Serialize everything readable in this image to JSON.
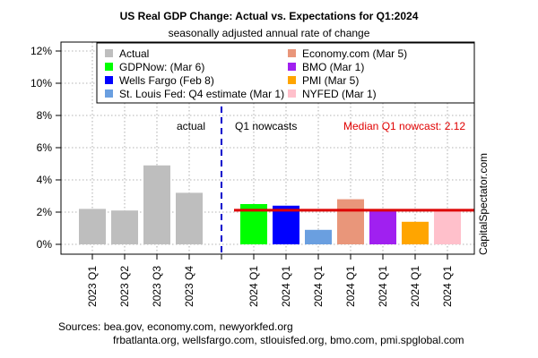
{
  "chart_data": {
    "type": "bar",
    "title": "US Real GDP Change: Actual vs. Expectations for Q1:2024",
    "subtitle": "seasonally adjusted annual rate of change",
    "ylim": [
      0,
      12
    ],
    "y_ticks": [
      "0%",
      "2%",
      "4%",
      "6%",
      "8%",
      "10%",
      "12%"
    ],
    "y_tick_values": [
      0,
      2,
      4,
      6,
      8,
      10,
      12
    ],
    "grid": true,
    "legend_position": "top",
    "actual_label": "actual",
    "nowcast_label": "Q1 nowcasts",
    "median_label": "Median Q1 nowcast: 2.12",
    "median_value": 2.12,
    "watermark": "CapitalSpectator.com",
    "bars": [
      {
        "category": "2023 Q1",
        "value": 2.2,
        "group": "actual",
        "series": "Actual",
        "color": "#bebebe"
      },
      {
        "category": "2023 Q2",
        "value": 2.1,
        "group": "actual",
        "series": "Actual",
        "color": "#bebebe"
      },
      {
        "category": "2023 Q3",
        "value": 4.9,
        "group": "actual",
        "series": "Actual",
        "color": "#bebebe"
      },
      {
        "category": "2023 Q4",
        "value": 3.2,
        "group": "actual",
        "series": "Actual",
        "color": "#bebebe"
      },
      {
        "category": "2024 Q1",
        "value": 2.5,
        "group": "nowcast",
        "series": "GDPNow: (Mar 6)",
        "color": "#00ff00"
      },
      {
        "category": "2024 Q1",
        "value": 2.4,
        "group": "nowcast",
        "series": "Wells Fargo (Feb 8)",
        "color": "#0000ff"
      },
      {
        "category": "2024 Q1",
        "value": 0.9,
        "group": "nowcast",
        "series": "St. Louis Fed: Q4 estimate (Mar 1)",
        "color": "#6a9fe0"
      },
      {
        "category": "2024 Q1",
        "value": 2.8,
        "group": "nowcast",
        "series": "Economy.com (Mar 5)",
        "color": "#e9967a"
      },
      {
        "category": "2024 Q1",
        "value": 2.1,
        "group": "nowcast",
        "series": "BMO (Mar 1)",
        "color": "#a020f0"
      },
      {
        "category": "2024 Q1",
        "value": 1.4,
        "group": "nowcast",
        "series": "PMI (Mar 5)",
        "color": "#ffa500"
      },
      {
        "category": "2024 Q1",
        "value": 2.1,
        "group": "nowcast",
        "series": "NYFED (Mar 1)",
        "color": "#ffc0cb"
      }
    ],
    "legend_left": [
      {
        "name": "Actual",
        "color": "#bebebe"
      },
      {
        "name": "GDPNow: (Mar 6)",
        "color": "#00ff00"
      },
      {
        "name": "Wells Fargo (Feb 8)",
        "color": "#0000ff"
      },
      {
        "name": "St. Louis Fed: Q4 estimate (Mar 1)",
        "color": "#6a9fe0"
      }
    ],
    "legend_right": [
      {
        "name": "Economy.com (Mar 5)",
        "color": "#e9967a"
      },
      {
        "name": "BMO (Mar 1)",
        "color": "#a020f0"
      },
      {
        "name": "PMI (Mar 5)",
        "color": "#ffa500"
      },
      {
        "name": "NYFED (Mar 1)",
        "color": "#ffc0cb"
      }
    ],
    "colors": {
      "divider": "#0000cc",
      "median_line": "#dd0000"
    }
  },
  "sources": {
    "line1": "Sources: bea.gov, economy.com, newyorkfed.org",
    "line2": "frbatlanta.org, wellsfargo.com, stlouisfed.org, bmo.com, pmi.spglobal.com"
  }
}
